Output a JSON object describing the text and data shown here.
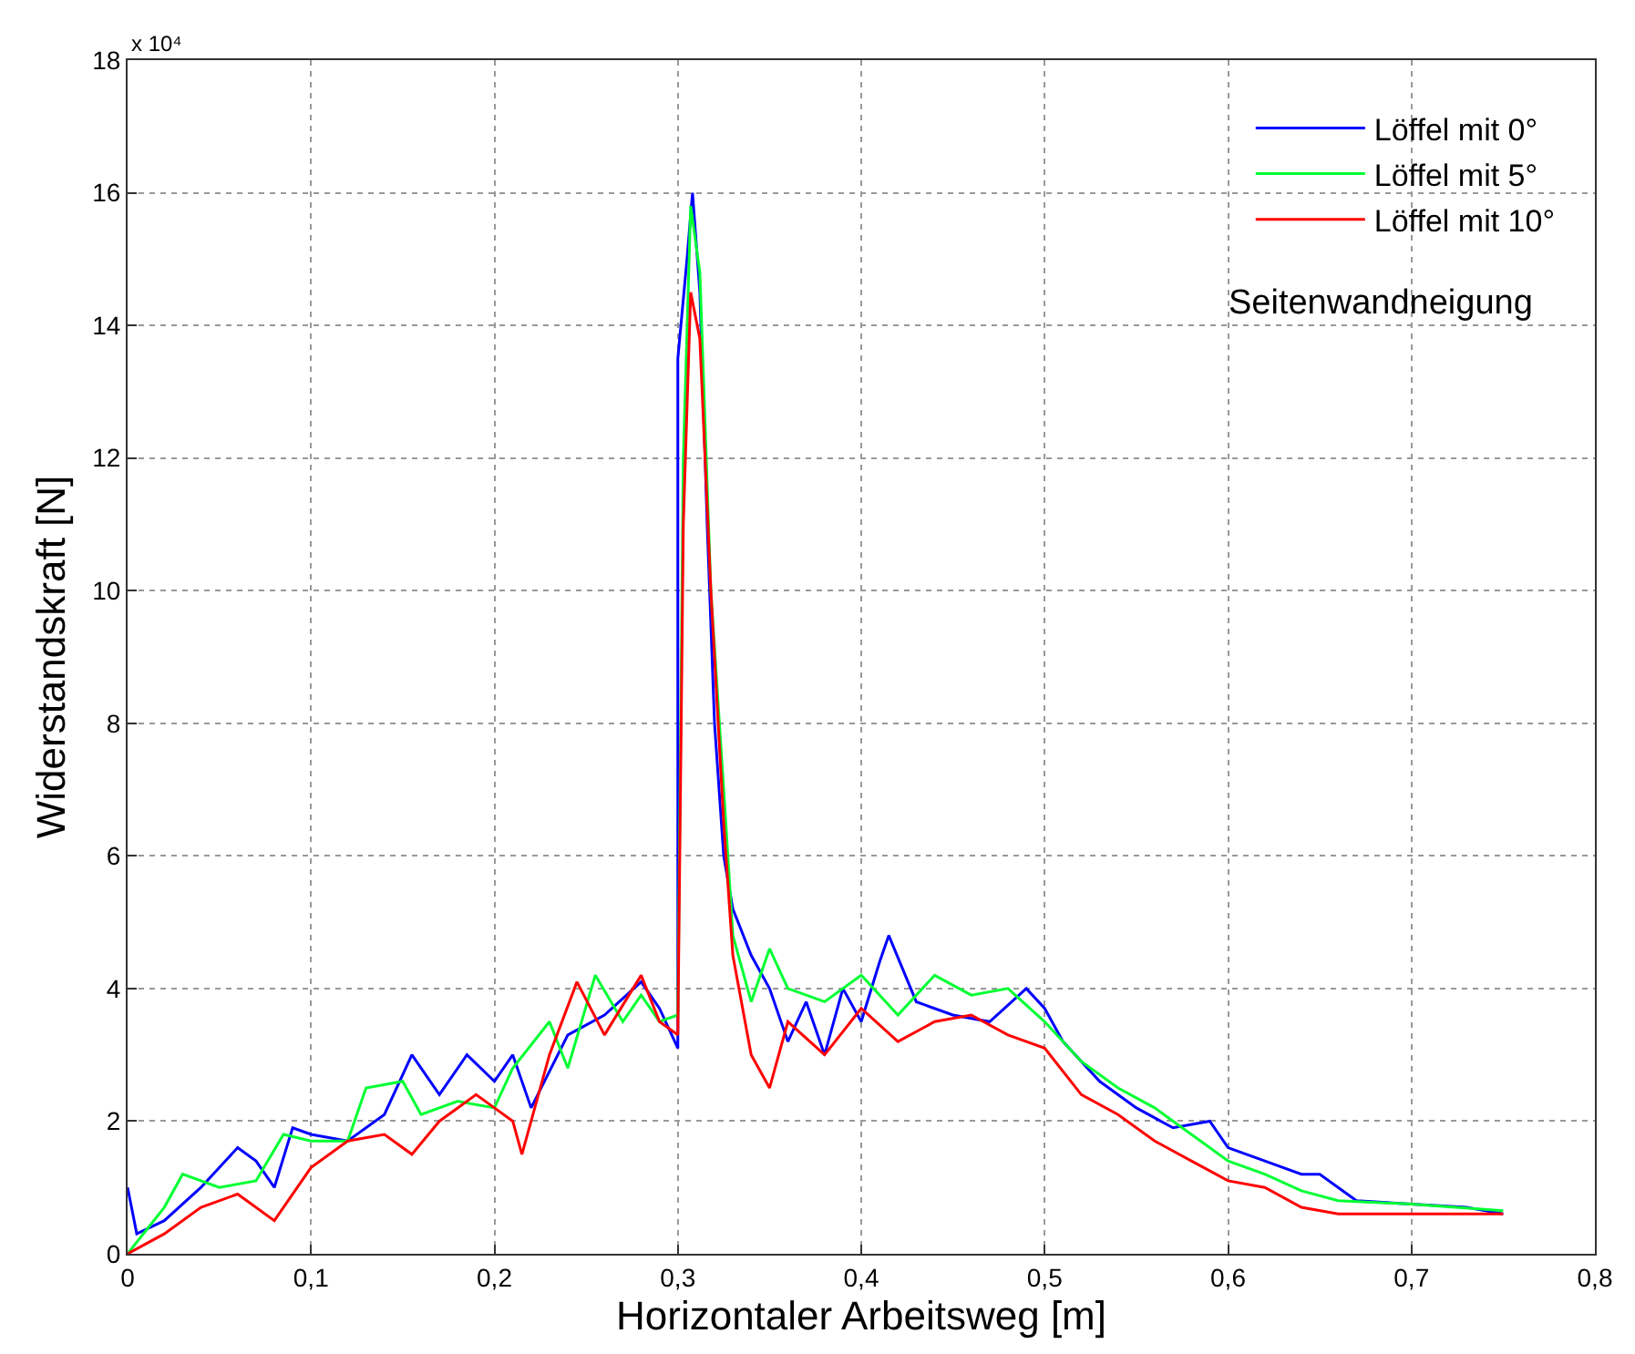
{
  "chart_data": {
    "type": "line",
    "xlabel": "Horizontaler Arbeitsweg [m]",
    "ylabel": "Widerstandskraft [N]",
    "legend_title": "Seitenwandneigung",
    "annotations": [
      "x 10⁴"
    ],
    "xlim": [
      0,
      0.8
    ],
    "xticks": [
      0,
      {
        "value": 0.1,
        "label": "0,1"
      },
      {
        "value": 0.2,
        "label": "0,2"
      },
      {
        "value": 0.3,
        "label": "0,3"
      },
      {
        "value": 0.4,
        "label": "0,4"
      },
      {
        "value": 0.5,
        "label": "0,5"
      },
      {
        "value": 0.6,
        "label": "0,6"
      },
      {
        "value": 0.7,
        "label": "0,7"
      },
      {
        "value": 0.8,
        "label": "0,8"
      }
    ],
    "ylim": [
      0,
      18
    ],
    "yticks": [
      0,
      2,
      4,
      6,
      8,
      10,
      12,
      14,
      16,
      18
    ],
    "grid": true,
    "legend": "top right",
    "marker": "none",
    "line_style": "solid",
    "series": [
      {
        "name": "Löffel mit 0°",
        "color": "#0000ff",
        "x": [
          0,
          0.005,
          0.02,
          0.04,
          0.06,
          0.07,
          0.08,
          0.09,
          0.1,
          0.12,
          0.14,
          0.155,
          0.17,
          0.185,
          0.2,
          0.21,
          0.22,
          0.24,
          0.26,
          0.28,
          0.29,
          0.3,
          0.3,
          0.305,
          0.308,
          0.312,
          0.316,
          0.32,
          0.325,
          0.33,
          0.34,
          0.35,
          0.36,
          0.37,
          0.38,
          0.39,
          0.4,
          0.41,
          0.415,
          0.43,
          0.45,
          0.47,
          0.49,
          0.5,
          0.51,
          0.53,
          0.55,
          0.57,
          0.59,
          0.6,
          0.62,
          0.64,
          0.65,
          0.67,
          0.7,
          0.73,
          0.75
        ],
        "values": [
          1.0,
          0.3,
          0.5,
          1.0,
          1.6,
          1.4,
          1.0,
          1.9,
          1.8,
          1.7,
          2.1,
          3.0,
          2.4,
          3.0,
          2.6,
          3.0,
          2.2,
          3.3,
          3.6,
          4.1,
          3.7,
          3.1,
          13.5,
          15.0,
          16.0,
          14.5,
          11.0,
          8.0,
          6.0,
          5.2,
          4.5,
          4.0,
          3.2,
          3.8,
          3.0,
          4.0,
          3.5,
          4.4,
          4.8,
          3.8,
          3.6,
          3.5,
          4.0,
          3.7,
          3.2,
          2.6,
          2.2,
          1.9,
          2.0,
          1.6,
          1.4,
          1.2,
          1.2,
          0.8,
          0.75,
          0.7,
          0.6
        ]
      },
      {
        "name": "Löffel mit 5°",
        "color": "#00ff33",
        "x": [
          0,
          0.02,
          0.03,
          0.05,
          0.07,
          0.085,
          0.1,
          0.12,
          0.13,
          0.15,
          0.16,
          0.18,
          0.2,
          0.21,
          0.23,
          0.24,
          0.255,
          0.27,
          0.28,
          0.29,
          0.3,
          0.303,
          0.307,
          0.312,
          0.318,
          0.325,
          0.33,
          0.34,
          0.35,
          0.36,
          0.38,
          0.4,
          0.42,
          0.44,
          0.46,
          0.48,
          0.5,
          0.52,
          0.54,
          0.56,
          0.58,
          0.6,
          0.62,
          0.64,
          0.66,
          0.7,
          0.75
        ],
        "values": [
          0,
          0.7,
          1.2,
          1.0,
          1.1,
          1.8,
          1.7,
          1.7,
          2.5,
          2.6,
          2.1,
          2.3,
          2.2,
          2.8,
          3.5,
          2.8,
          4.2,
          3.5,
          3.9,
          3.5,
          3.6,
          12.0,
          15.8,
          14.8,
          10.0,
          7.0,
          4.8,
          3.8,
          4.6,
          4.0,
          3.8,
          4.2,
          3.6,
          4.2,
          3.9,
          4.0,
          3.5,
          2.9,
          2.5,
          2.2,
          1.8,
          1.4,
          1.2,
          0.95,
          0.8,
          0.75,
          0.65
        ]
      },
      {
        "name": "Löffel mit 10°",
        "color": "#ff0000",
        "x": [
          0,
          0.02,
          0.04,
          0.06,
          0.08,
          0.1,
          0.12,
          0.14,
          0.155,
          0.17,
          0.19,
          0.2,
          0.21,
          0.215,
          0.23,
          0.245,
          0.26,
          0.28,
          0.29,
          0.3,
          0.303,
          0.307,
          0.312,
          0.318,
          0.325,
          0.33,
          0.34,
          0.35,
          0.36,
          0.38,
          0.4,
          0.42,
          0.44,
          0.46,
          0.48,
          0.5,
          0.52,
          0.54,
          0.56,
          0.58,
          0.6,
          0.62,
          0.64,
          0.66,
          0.7,
          0.75
        ],
        "values": [
          0,
          0.3,
          0.7,
          0.9,
          0.5,
          1.3,
          1.7,
          1.8,
          1.5,
          2.0,
          2.4,
          2.2,
          2.0,
          1.5,
          3.0,
          4.1,
          3.3,
          4.2,
          3.5,
          3.3,
          11.0,
          14.5,
          13.8,
          10.0,
          6.5,
          4.5,
          3.0,
          2.5,
          3.5,
          3.0,
          3.7,
          3.2,
          3.5,
          3.6,
          3.3,
          3.1,
          2.4,
          2.1,
          1.7,
          1.4,
          1.1,
          1.0,
          0.7,
          0.6,
          0.6,
          0.6
        ]
      }
    ]
  }
}
